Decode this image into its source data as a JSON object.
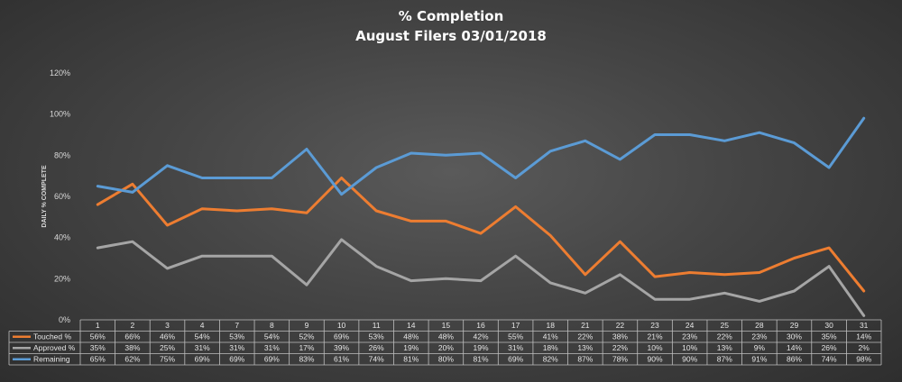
{
  "chart_data": {
    "type": "line",
    "title": "% Completion",
    "subtitle": "August  Filers 03/01/2018",
    "xlabel": "",
    "ylabel": "DAILY % COMPLETE",
    "ylim": [
      0,
      120
    ],
    "yticks": [
      "0%",
      "20%",
      "40%",
      "60%",
      "80%",
      "100%",
      "120%"
    ],
    "grid": false,
    "legend": "data-table",
    "categories": [
      "1",
      "2",
      "3",
      "4",
      "7",
      "8",
      "9",
      "10",
      "11",
      "14",
      "15",
      "16",
      "17",
      "18",
      "21",
      "22",
      "23",
      "24",
      "25",
      "28",
      "29",
      "30",
      "31"
    ],
    "series": [
      {
        "name": "Touched %",
        "color": "#ed7d31",
        "values": [
          56,
          66,
          46,
          54,
          53,
          54,
          52,
          69,
          53,
          48,
          48,
          42,
          55,
          41,
          22,
          38,
          21,
          23,
          22,
          23,
          30,
          35,
          14
        ],
        "labels": [
          "56%",
          "66%",
          "46%",
          "54%",
          "53%",
          "54%",
          "52%",
          "69%",
          "53%",
          "48%",
          "48%",
          "42%",
          "55%",
          "41%",
          "22%",
          "38%",
          "21%",
          "23%",
          "22%",
          "23%",
          "30%",
          "35%",
          "14%"
        ]
      },
      {
        "name": "Approved %",
        "color": "#a5a5a5",
        "values": [
          35,
          38,
          25,
          31,
          31,
          31,
          17,
          39,
          26,
          19,
          20,
          19,
          31,
          18,
          13,
          22,
          10,
          10,
          13,
          9,
          14,
          26,
          2
        ],
        "labels": [
          "35%",
          "38%",
          "25%",
          "31%",
          "31%",
          "31%",
          "17%",
          "39%",
          "26%",
          "19%",
          "20%",
          "19%",
          "31%",
          "18%",
          "13%",
          "22%",
          "10%",
          "10%",
          "13%",
          "9%",
          "14%",
          "26%",
          "2%"
        ]
      },
      {
        "name": "Remaining",
        "color": "#5b9bd5",
        "values": [
          65,
          62,
          75,
          69,
          69,
          69,
          83,
          61,
          74,
          81,
          80,
          81,
          69,
          82,
          87,
          78,
          90,
          90,
          87,
          91,
          86,
          74,
          98
        ],
        "labels": [
          "65%",
          "62%",
          "75%",
          "69%",
          "69%",
          "69%",
          "83%",
          "61%",
          "74%",
          "81%",
          "80%",
          "81%",
          "69%",
          "82%",
          "87%",
          "78%",
          "90%",
          "90%",
          "87%",
          "91%",
          "86%",
          "74%",
          "98%"
        ]
      }
    ]
  }
}
